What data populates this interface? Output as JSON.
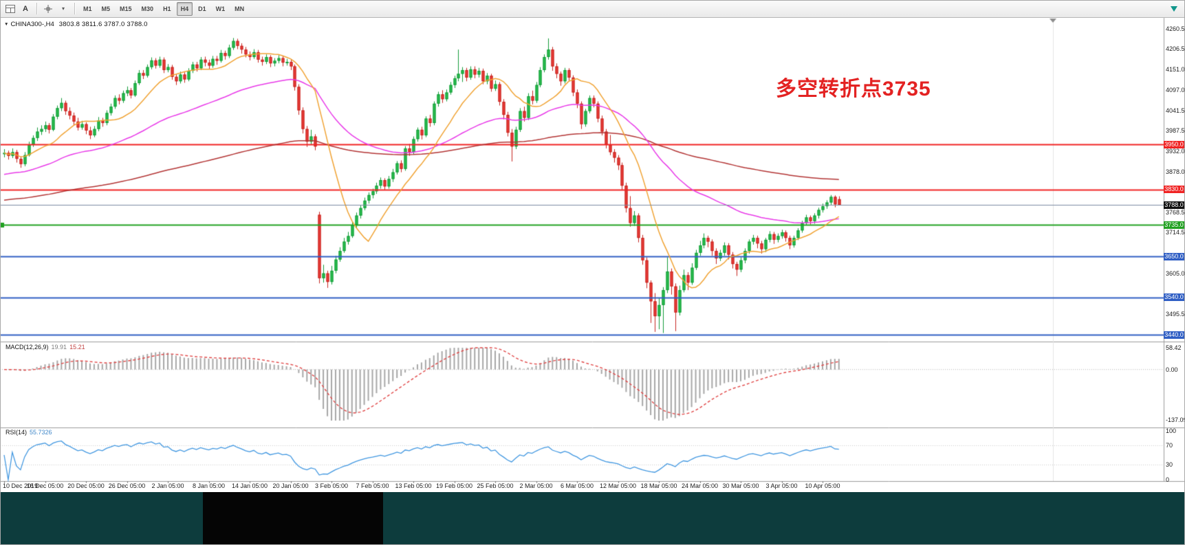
{
  "icons": {
    "collapse": "▼",
    "caret": "▾",
    "text_tool": "A"
  },
  "toolbar": {
    "timeframes": [
      {
        "label": "M1",
        "active": false
      },
      {
        "label": "M5",
        "active": false
      },
      {
        "label": "M15",
        "active": false
      },
      {
        "label": "M30",
        "active": false
      },
      {
        "label": "H1",
        "active": false
      },
      {
        "label": "H4",
        "active": true
      },
      {
        "label": "D1",
        "active": false
      },
      {
        "label": "W1",
        "active": false
      },
      {
        "label": "MN",
        "active": false
      }
    ]
  },
  "chart": {
    "title": {
      "symbol": "CHINA300-,H4",
      "ohlc": "3803.8 3811.6 3787.0 3788.0"
    }
  },
  "chart_data": {
    "type": "candlestick",
    "symbol": "CHINA300",
    "timeframe": "H4",
    "y_range": {
      "top": 4290,
      "bottom": 3422
    },
    "price_ticks": [
      "4260.5",
      "4206.5",
      "4151.0",
      "4097.0",
      "4041.5",
      "3987.5",
      "3932.0",
      "3878.0",
      "3822.5",
      "3768.5",
      "3714.5",
      "3660.5",
      "3605.0",
      "3551.0",
      "3495.5",
      "3441.0"
    ],
    "levels": [
      {
        "price": 3950.0,
        "label": "3950.0",
        "color": "#f02323",
        "badge": "#f02323",
        "width": 2
      },
      {
        "price": 3830.0,
        "label": "3830.0",
        "color": "#f02323",
        "badge": "#f02323",
        "width": 2
      },
      {
        "price": 3788.0,
        "label": "3788.0",
        "color": "#7b8aa0",
        "badge": "#101010",
        "width": 1,
        "current": true
      },
      {
        "price": 3735.0,
        "label": "3735.0",
        "color": "#22a122",
        "badge": "#22a122",
        "width": 2,
        "marker": true
      },
      {
        "price": 3650.0,
        "label": "3650.0",
        "color": "#2f5ec4",
        "badge": "#2f5ec4",
        "width": 2
      },
      {
        "price": 3540.0,
        "label": "3540.0",
        "color": "#2f5ec4",
        "badge": "#2f5ec4",
        "width": 2
      },
      {
        "price": 3440.0,
        "label": "3440.0",
        "color": "#2f5ec4",
        "badge": "#2f5ec4",
        "width": 2
      }
    ],
    "time_labels": [
      "10 Dec 2019",
      "16 Dec 05:00",
      "20 Dec 05:00",
      "26 Dec 05:00",
      "2 Jan 05:00",
      "8 Jan 05:00",
      "14 Jan 05:00",
      "20 Jan 05:00",
      "3 Feb 05:00",
      "7 Feb 05:00",
      "13 Feb 05:00",
      "19 Feb 05:00",
      "25 Feb 05:00",
      "2 Mar 05:00",
      "6 Mar 05:00",
      "12 Mar 05:00",
      "18 Mar 05:00",
      "24 Mar 05:00",
      "30 Mar 05:00",
      "3 Apr 05:00",
      "10 Apr 05:00"
    ],
    "annotation": {
      "text": "多空转折点3735",
      "color": "#e32222"
    },
    "colors": {
      "up": "#2bbf4e",
      "up_border": "#119a37",
      "down": "#ea3d38",
      "down_border": "#c4231e",
      "macd_hist": "#a6a6a6",
      "macd_signal": "#e04545",
      "rsi": "#3f96e0"
    },
    "moving_averages": [
      {
        "name": "MA-fast",
        "type": "SMA",
        "period": 13,
        "seed": 3905,
        "color": "#f0a232"
      },
      {
        "name": "MA-mid",
        "type": "EMA",
        "period": 55,
        "seed": 3868,
        "color": "#e838e8"
      },
      {
        "name": "MA-slow",
        "type": "EMA",
        "period": 200,
        "seed": 3800,
        "color": "#b23333"
      }
    ],
    "macd": {
      "label": "MACD(12,26,9)",
      "value_main": "19.91",
      "value_signal": "15.21",
      "params": [
        12,
        26,
        9
      ],
      "axis": [
        "58.42",
        "0.00",
        "-137.09"
      ]
    },
    "rsi": {
      "label": "RSI(14)",
      "value": "55.7326",
      "period": 14,
      "axis": [
        "100",
        "70",
        "30",
        "0"
      ],
      "levels": [
        70,
        30
      ]
    },
    "candles": [
      [
        3925,
        3938,
        3916,
        3928
      ],
      [
        3928,
        3934,
        3910,
        3920
      ],
      [
        3920,
        3940,
        3914,
        3930
      ],
      [
        3930,
        3936,
        3902,
        3912
      ],
      [
        3912,
        3918,
        3888,
        3898
      ],
      [
        3898,
        3930,
        3892,
        3922
      ],
      [
        3922,
        3958,
        3918,
        3950
      ],
      [
        3950,
        3975,
        3944,
        3968
      ],
      [
        3968,
        3996,
        3960,
        3985
      ],
      [
        3985,
        4002,
        3976,
        3992
      ],
      [
        3992,
        4012,
        3984,
        4002
      ],
      [
        4002,
        4008,
        3980,
        3990
      ],
      [
        3990,
        4032,
        3986,
        4025
      ],
      [
        4025,
        4055,
        4018,
        4048
      ],
      [
        4048,
        4075,
        4040,
        4062
      ],
      [
        4062,
        4068,
        4030,
        4040
      ],
      [
        4040,
        4050,
        4018,
        4028
      ],
      [
        4028,
        4036,
        4002,
        4012
      ],
      [
        4012,
        4022,
        3988,
        3996
      ],
      [
        3996,
        4014,
        3990,
        4005
      ],
      [
        4005,
        4010,
        3978,
        3988
      ],
      [
        3988,
        3998,
        3965,
        3975
      ],
      [
        3975,
        4000,
        3970,
        3992
      ],
      [
        3992,
        4024,
        3986,
        4015
      ],
      [
        4015,
        4022,
        3998,
        4008
      ],
      [
        4008,
        4042,
        4002,
        4035
      ],
      [
        4035,
        4060,
        4028,
        4052
      ],
      [
        4052,
        4082,
        4046,
        4075
      ],
      [
        4075,
        4085,
        4058,
        4068
      ],
      [
        4068,
        4095,
        4062,
        4088
      ],
      [
        4088,
        4106,
        4080,
        4096
      ],
      [
        4096,
        4102,
        4074,
        4082
      ],
      [
        4082,
        4122,
        4078,
        4115
      ],
      [
        4115,
        4150,
        4110,
        4142
      ],
      [
        4142,
        4150,
        4126,
        4135
      ],
      [
        4135,
        4165,
        4130,
        4158
      ],
      [
        4158,
        4184,
        4152,
        4176
      ],
      [
        4176,
        4182,
        4154,
        4162
      ],
      [
        4162,
        4186,
        4156,
        4178
      ],
      [
        4178,
        4184,
        4142,
        4150
      ],
      [
        4150,
        4166,
        4144,
        4158
      ],
      [
        4158,
        4164,
        4124,
        4132
      ],
      [
        4132,
        4140,
        4110,
        4120
      ],
      [
        4120,
        4146,
        4114,
        4138
      ],
      [
        4138,
        4144,
        4116,
        4125
      ],
      [
        4125,
        4155,
        4120,
        4148
      ],
      [
        4148,
        4172,
        4142,
        4165
      ],
      [
        4165,
        4172,
        4146,
        4155
      ],
      [
        4155,
        4185,
        4150,
        4178
      ],
      [
        4178,
        4186,
        4160,
        4170
      ],
      [
        4170,
        4178,
        4152,
        4162
      ],
      [
        4162,
        4188,
        4156,
        4180
      ],
      [
        4180,
        4188,
        4164,
        4175
      ],
      [
        4175,
        4204,
        4170,
        4196
      ],
      [
        4196,
        4202,
        4178,
        4188
      ],
      [
        4188,
        4218,
        4182,
        4210
      ],
      [
        4210,
        4236,
        4204,
        4228
      ],
      [
        4228,
        4234,
        4206,
        4215
      ],
      [
        4215,
        4222,
        4194,
        4205
      ],
      [
        4205,
        4212,
        4184,
        4192
      ],
      [
        4192,
        4200,
        4176,
        4185
      ],
      [
        4185,
        4206,
        4180,
        4198
      ],
      [
        4198,
        4204,
        4170,
        4178
      ],
      [
        4178,
        4186,
        4162,
        4172
      ],
      [
        4172,
        4192,
        4166,
        4185
      ],
      [
        4185,
        4190,
        4158,
        4168
      ],
      [
        4168,
        4182,
        4160,
        4175
      ],
      [
        4175,
        4190,
        4168,
        4182
      ],
      [
        4182,
        4188,
        4160,
        4170
      ],
      [
        4170,
        4180,
        4162,
        4172
      ],
      [
        4172,
        4178,
        4150,
        4160
      ],
      [
        4160,
        4165,
        4095,
        4105
      ],
      [
        4105,
        4112,
        4030,
        4042
      ],
      [
        4042,
        4050,
        3980,
        3992
      ],
      [
        3992,
        4000,
        3944,
        3958
      ],
      [
        3958,
        3990,
        3950,
        3972
      ],
      [
        3972,
        3978,
        3935,
        3945
      ],
      [
        3762,
        3770,
        3578,
        3592
      ],
      [
        3592,
        3628,
        3580,
        3605
      ],
      [
        3605,
        3612,
        3566,
        3582
      ],
      [
        3582,
        3625,
        3575,
        3612
      ],
      [
        3612,
        3652,
        3605,
        3642
      ],
      [
        3642,
        3675,
        3636,
        3665
      ],
      [
        3665,
        3700,
        3660,
        3690
      ],
      [
        3690,
        3716,
        3682,
        3705
      ],
      [
        3705,
        3742,
        3700,
        3735
      ],
      [
        3735,
        3768,
        3728,
        3760
      ],
      [
        3760,
        3788,
        3752,
        3780
      ],
      [
        3780,
        3808,
        3774,
        3800
      ],
      [
        3800,
        3822,
        3792,
        3815
      ],
      [
        3815,
        3832,
        3806,
        3825
      ],
      [
        3825,
        3848,
        3818,
        3840
      ],
      [
        3840,
        3862,
        3832,
        3855
      ],
      [
        3855,
        3860,
        3828,
        3838
      ],
      [
        3838,
        3866,
        3832,
        3858
      ],
      [
        3858,
        3885,
        3850,
        3876
      ],
      [
        3876,
        3906,
        3870,
        3900
      ],
      [
        3900,
        3908,
        3876,
        3885
      ],
      [
        3885,
        3946,
        3880,
        3940
      ],
      [
        3940,
        3952,
        3920,
        3930
      ],
      [
        3930,
        3972,
        3924,
        3965
      ],
      [
        3965,
        3996,
        3958,
        3990
      ],
      [
        3990,
        3998,
        3964,
        3975
      ],
      [
        3975,
        4026,
        3970,
        4020
      ],
      [
        4020,
        4030,
        3998,
        4008
      ],
      [
        4008,
        4066,
        4002,
        4060
      ],
      [
        4060,
        4092,
        4052,
        4085
      ],
      [
        4085,
        4096,
        4062,
        4072
      ],
      [
        4072,
        4098,
        4066,
        4090
      ],
      [
        4090,
        4118,
        4084,
        4110
      ],
      [
        4110,
        4135,
        4102,
        4128
      ],
      [
        4128,
        4205,
        4120,
        4140
      ],
      [
        4140,
        4158,
        4118,
        4150
      ],
      [
        4150,
        4156,
        4120,
        4130
      ],
      [
        4130,
        4160,
        4124,
        4152
      ],
      [
        4152,
        4160,
        4128,
        4138
      ],
      [
        4138,
        4156,
        4130,
        4148
      ],
      [
        4148,
        4154,
        4112,
        4120
      ],
      [
        4120,
        4142,
        4112,
        4135
      ],
      [
        4135,
        4140,
        4092,
        4100
      ],
      [
        4100,
        4122,
        4094,
        4112
      ],
      [
        4112,
        4118,
        4055,
        4065
      ],
      [
        4065,
        4072,
        4018,
        4030
      ],
      [
        4030,
        4038,
        3972,
        3982
      ],
      [
        3982,
        3992,
        3905,
        3945
      ],
      [
        3945,
        3998,
        3938,
        3990
      ],
      [
        3990,
        4048,
        3984,
        4040
      ],
      [
        4040,
        4052,
        4012,
        4022
      ],
      [
        4022,
        4088,
        4016,
        4080
      ],
      [
        4080,
        4095,
        4058,
        4068
      ],
      [
        4068,
        4118,
        4062,
        4110
      ],
      [
        4110,
        4158,
        4104,
        4150
      ],
      [
        4150,
        4192,
        4144,
        4185
      ],
      [
        4185,
        4235,
        4178,
        4205
      ],
      [
        4205,
        4212,
        4148,
        4160
      ],
      [
        4160,
        4168,
        4128,
        4140
      ],
      [
        4140,
        4146,
        4108,
        4120
      ],
      [
        4120,
        4156,
        4114,
        4150
      ],
      [
        4150,
        4155,
        4122,
        4130
      ],
      [
        4130,
        4136,
        4080,
        4090
      ],
      [
        4090,
        4098,
        4048,
        4060
      ],
      [
        4060,
        4066,
        3992,
        4005
      ],
      [
        4005,
        4046,
        3998,
        4040
      ],
      [
        4040,
        4082,
        4034,
        4075
      ],
      [
        4075,
        4082,
        4050,
        4060
      ],
      [
        4060,
        4066,
        4010,
        4020
      ],
      [
        4020,
        4028,
        3975,
        3985
      ],
      [
        3985,
        3992,
        3940,
        3950
      ],
      [
        3950,
        3976,
        3922,
        3930
      ],
      [
        3930,
        3938,
        3902,
        3915
      ],
      [
        3915,
        3922,
        3882,
        3895
      ],
      [
        3895,
        3902,
        3828,
        3840
      ],
      [
        3840,
        3848,
        3768,
        3780
      ],
      [
        3780,
        3812,
        3730,
        3740
      ],
      [
        3740,
        3772,
        3732,
        3760
      ],
      [
        3760,
        3766,
        3688,
        3700
      ],
      [
        3700,
        3708,
        3628,
        3640
      ],
      [
        3640,
        3648,
        3565,
        3580
      ],
      [
        3580,
        3586,
        3472,
        3530
      ],
      [
        3530,
        3552,
        3448,
        3490
      ],
      [
        3490,
        3538,
        3455,
        3520
      ],
      [
        3520,
        3568,
        3445,
        3560
      ],
      [
        3560,
        3648,
        3552,
        3610
      ],
      [
        3610,
        3618,
        3548,
        3570
      ],
      [
        3570,
        3578,
        3450,
        3500
      ],
      [
        3500,
        3572,
        3492,
        3560
      ],
      [
        3560,
        3615,
        3554,
        3600
      ],
      [
        3600,
        3608,
        3560,
        3580
      ],
      [
        3580,
        3632,
        3574,
        3620
      ],
      [
        3620,
        3668,
        3614,
        3660
      ],
      [
        3660,
        3692,
        3652,
        3680
      ],
      [
        3680,
        3712,
        3672,
        3700
      ],
      [
        3700,
        3706,
        3675,
        3690
      ],
      [
        3690,
        3696,
        3652,
        3665
      ],
      [
        3665,
        3672,
        3630,
        3645
      ],
      [
        3645,
        3668,
        3638,
        3660
      ],
      [
        3660,
        3688,
        3652,
        3680
      ],
      [
        3680,
        3686,
        3642,
        3655
      ],
      [
        3655,
        3662,
        3618,
        3630
      ],
      [
        3630,
        3636,
        3598,
        3615
      ],
      [
        3615,
        3648,
        3608,
        3640
      ],
      [
        3640,
        3672,
        3632,
        3665
      ],
      [
        3665,
        3696,
        3658,
        3690
      ],
      [
        3690,
        3708,
        3682,
        3700
      ],
      [
        3700,
        3706,
        3672,
        3685
      ],
      [
        3685,
        3692,
        3658,
        3670
      ],
      [
        3670,
        3700,
        3662,
        3695
      ],
      [
        3695,
        3718,
        3688,
        3710
      ],
      [
        3710,
        3716,
        3684,
        3695
      ],
      [
        3695,
        3712,
        3688,
        3705
      ],
      [
        3705,
        3722,
        3698,
        3715
      ],
      [
        3715,
        3720,
        3690,
        3700
      ],
      [
        3700,
        3706,
        3670,
        3680
      ],
      [
        3680,
        3706,
        3674,
        3700
      ],
      [
        3700,
        3726,
        3694,
        3720
      ],
      [
        3720,
        3746,
        3714,
        3740
      ],
      [
        3740,
        3762,
        3734,
        3755
      ],
      [
        3755,
        3760,
        3736,
        3745
      ],
      [
        3745,
        3766,
        3738,
        3760
      ],
      [
        3760,
        3781,
        3752,
        3775
      ],
      [
        3775,
        3792,
        3768,
        3785
      ],
      [
        3785,
        3801,
        3778,
        3795
      ],
      [
        3795,
        3815,
        3788,
        3810
      ],
      [
        3810,
        3814,
        3782,
        3790
      ],
      [
        3803.8,
        3811.6,
        3787.0,
        3788.0
      ]
    ]
  },
  "taskbar": {
    "background": "#0d3c3d",
    "segment_color": "#050505"
  }
}
